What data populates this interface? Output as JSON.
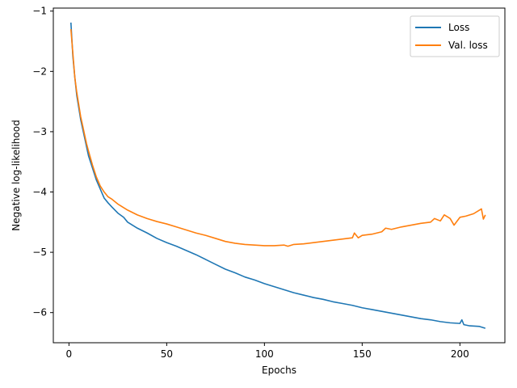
{
  "chart_data": {
    "type": "line",
    "title": "",
    "xlabel": "Epochs",
    "ylabel": "Negative log-likelihood",
    "xlim": [
      -8,
      223
    ],
    "ylim": [
      -6.5,
      -0.95
    ],
    "xticks": [
      0,
      50,
      100,
      150,
      200
    ],
    "yticks": [
      -6,
      -5,
      -4,
      -3,
      -2,
      -1
    ],
    "xtick_labels": [
      "0",
      "50",
      "100",
      "150",
      "200"
    ],
    "ytick_labels": [
      "−6",
      "−5",
      "−4",
      "−3",
      "−2",
      "−1"
    ],
    "grid": false,
    "legend_position": "top-right",
    "series": [
      {
        "name": "Loss",
        "color": "#1f77b4",
        "x": [
          1,
          2,
          3,
          4,
          5,
          6,
          7,
          8,
          9,
          10,
          12,
          14,
          16,
          18,
          20,
          22,
          25,
          28,
          30,
          35,
          40,
          45,
          50,
          55,
          60,
          65,
          70,
          75,
          80,
          85,
          90,
          95,
          100,
          105,
          110,
          115,
          120,
          125,
          130,
          135,
          140,
          145,
          150,
          155,
          160,
          165,
          170,
          175,
          180,
          185,
          190,
          195,
          200,
          201,
          202,
          205,
          210,
          213
        ],
        "y": [
          -1.19,
          -1.75,
          -2.1,
          -2.4,
          -2.6,
          -2.8,
          -2.95,
          -3.1,
          -3.25,
          -3.4,
          -3.6,
          -3.8,
          -3.95,
          -4.1,
          -4.18,
          -4.25,
          -4.35,
          -4.42,
          -4.5,
          -4.6,
          -4.68,
          -4.77,
          -4.84,
          -4.9,
          -4.97,
          -5.04,
          -5.12,
          -5.2,
          -5.28,
          -5.34,
          -5.41,
          -5.46,
          -5.52,
          -5.57,
          -5.62,
          -5.67,
          -5.71,
          -5.75,
          -5.78,
          -5.82,
          -5.85,
          -5.88,
          -5.92,
          -5.95,
          -5.98,
          -6.01,
          -6.04,
          -6.07,
          -6.1,
          -6.12,
          -6.15,
          -6.17,
          -6.18,
          -6.12,
          -6.2,
          -6.22,
          -6.23,
          -6.26
        ]
      },
      {
        "name": "Val. loss",
        "color": "#ff7f0e",
        "x": [
          1,
          2,
          3,
          4,
          5,
          6,
          7,
          8,
          9,
          10,
          12,
          14,
          16,
          18,
          20,
          22,
          25,
          28,
          30,
          35,
          40,
          45,
          50,
          55,
          60,
          65,
          70,
          75,
          80,
          85,
          90,
          95,
          100,
          105,
          110,
          112,
          115,
          120,
          125,
          130,
          135,
          140,
          145,
          146,
          148,
          150,
          155,
          160,
          162,
          165,
          170,
          175,
          180,
          185,
          187,
          190,
          192,
          195,
          197,
          200,
          203,
          205,
          207,
          210,
          211,
          212,
          213
        ],
        "y": [
          -1.3,
          -1.7,
          -2.1,
          -2.35,
          -2.55,
          -2.75,
          -2.9,
          -3.05,
          -3.2,
          -3.32,
          -3.55,
          -3.75,
          -3.9,
          -4.0,
          -4.08,
          -4.12,
          -4.2,
          -4.26,
          -4.3,
          -4.38,
          -4.44,
          -4.49,
          -4.53,
          -4.58,
          -4.63,
          -4.68,
          -4.72,
          -4.77,
          -4.82,
          -4.85,
          -4.87,
          -4.88,
          -4.89,
          -4.89,
          -4.88,
          -4.9,
          -4.87,
          -4.86,
          -4.84,
          -4.82,
          -4.8,
          -4.78,
          -4.76,
          -4.68,
          -4.76,
          -4.72,
          -4.7,
          -4.66,
          -4.6,
          -4.62,
          -4.58,
          -4.55,
          -4.52,
          -4.5,
          -4.44,
          -4.48,
          -4.38,
          -4.44,
          -4.55,
          -4.42,
          -4.4,
          -4.38,
          -4.36,
          -4.3,
          -4.28,
          -4.45,
          -4.38
        ]
      }
    ]
  }
}
